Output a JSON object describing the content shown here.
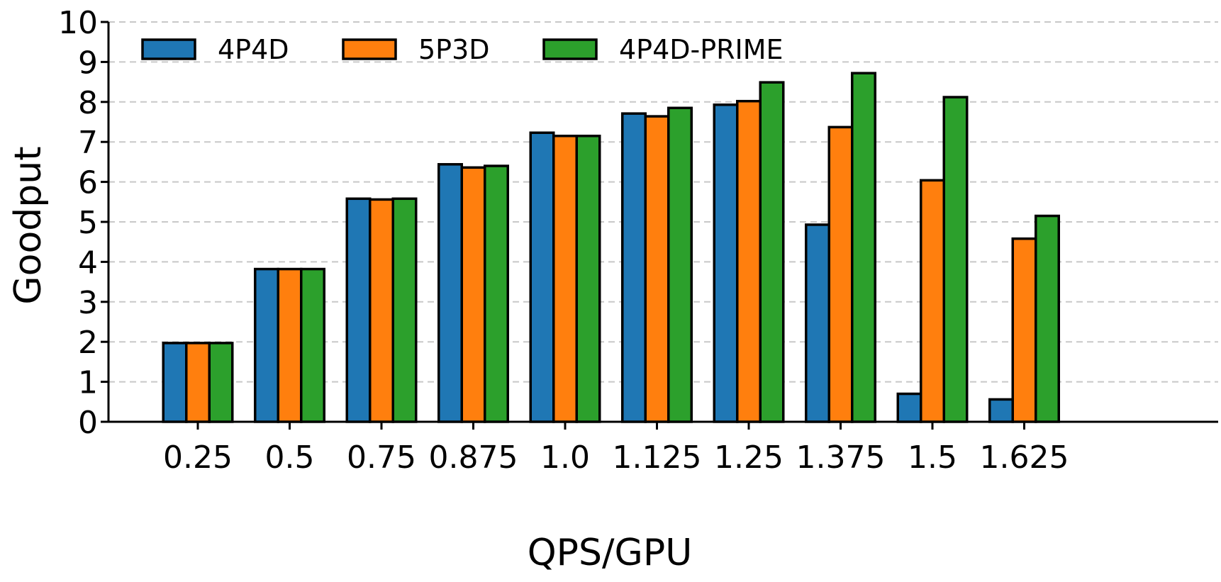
{
  "chart_data": {
    "type": "bar",
    "title": "",
    "xlabel": "QPS/GPU",
    "ylabel": "Goodput",
    "ylim": [
      0,
      10
    ],
    "yticks": [
      "0",
      "1",
      "2",
      "3",
      "4",
      "5",
      "6",
      "7",
      "8",
      "9",
      "10"
    ],
    "grid": "horizontal dashed",
    "legend_position": "top-left",
    "categories": [
      "0.25",
      "0.5",
      "0.75",
      "0.875",
      "1.0",
      "1.125",
      "1.25",
      "1.375",
      "1.5",
      "1.625"
    ],
    "series": [
      {
        "name": "4P4D",
        "color": "#1f77b4",
        "values": [
          1.97,
          3.82,
          5.58,
          6.44,
          7.23,
          7.71,
          7.93,
          4.93,
          0.7,
          0.56
        ]
      },
      {
        "name": "5P3D",
        "color": "#ff7f0e",
        "values": [
          1.97,
          3.82,
          5.56,
          6.36,
          7.15,
          7.64,
          8.02,
          7.37,
          6.04,
          4.58
        ]
      },
      {
        "name": "4P4D-PRIME",
        "color": "#2ca02c",
        "values": [
          1.97,
          3.82,
          5.58,
          6.4,
          7.15,
          7.85,
          8.49,
          8.72,
          8.12,
          5.15
        ]
      }
    ]
  }
}
